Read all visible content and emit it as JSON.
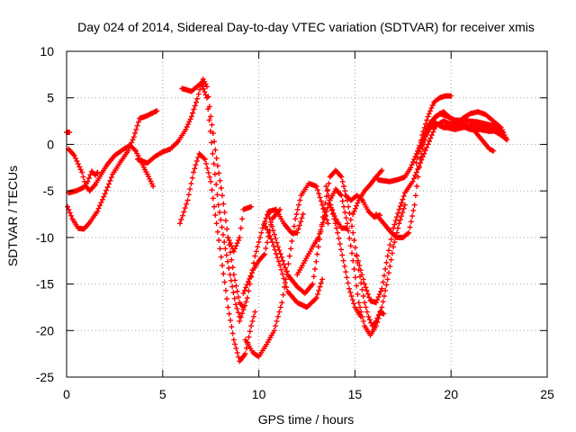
{
  "chart_data": {
    "type": "scatter",
    "title": "Day 024 of 2014, Sidereal Day-to-day VTEC variation (SDTVAR) for receiver xmis",
    "xlabel": "GPS time / hours",
    "ylabel": "SDTVAR / TECUs",
    "xlim": [
      0,
      25
    ],
    "ylim": [
      -25,
      10
    ],
    "xticks": [
      0,
      5,
      10,
      15,
      20,
      25
    ],
    "yticks": [
      -25,
      -20,
      -15,
      -10,
      -5,
      0,
      5,
      10
    ],
    "grid": true,
    "legend": "none",
    "marker": "plus",
    "color": "#ff0000",
    "series": [
      {
        "points": [
          [
            0,
            1.3
          ],
          [
            0.15,
            1.3
          ]
        ]
      },
      {
        "points": [
          [
            0.1,
            -0.5
          ],
          [
            0.4,
            -1.2
          ],
          [
            0.8,
            -3.0
          ],
          [
            1.0,
            -4.5
          ],
          [
            1.2,
            -5.0
          ],
          [
            1.5,
            -4.3
          ],
          [
            1.8,
            -3.2
          ],
          [
            2.1,
            -2.2
          ],
          [
            2.5,
            -1.2
          ],
          [
            2.9,
            -0.6
          ],
          [
            3.3,
            -0.1
          ],
          [
            3.6,
            -0.7
          ],
          [
            3.9,
            -2.0
          ],
          [
            4.2,
            -3.2
          ],
          [
            4.5,
            -4.5
          ]
        ]
      },
      {
        "points": [
          [
            0.1,
            -5.2
          ],
          [
            0.5,
            -5.0
          ],
          [
            0.9,
            -4.6
          ],
          [
            1.1,
            -4.0
          ],
          [
            1.3,
            -2.9
          ],
          [
            1.5,
            -3.3
          ],
          [
            1.6,
            -3.0
          ]
        ]
      },
      {
        "points": [
          [
            0.05,
            -6.7
          ],
          [
            0.3,
            -8.0
          ],
          [
            0.6,
            -9.0
          ],
          [
            0.9,
            -9.1
          ],
          [
            1.2,
            -8.4
          ],
          [
            1.6,
            -7.2
          ],
          [
            2.0,
            -5.3
          ],
          [
            2.4,
            -3.2
          ],
          [
            2.8,
            -1.9
          ],
          [
            3.2,
            -0.7
          ],
          [
            3.5,
            0.8
          ],
          [
            3.8,
            2.8
          ],
          [
            4.1,
            3.0
          ],
          [
            4.4,
            3.3
          ],
          [
            4.7,
            3.6
          ]
        ]
      },
      {
        "points": [
          [
            3.7,
            -1.6
          ],
          [
            4.2,
            -2.0
          ],
          [
            4.6,
            -1.3
          ],
          [
            5.0,
            -0.8
          ],
          [
            5.4,
            -0.5
          ],
          [
            5.8,
            0.3
          ],
          [
            6.2,
            1.6
          ],
          [
            6.5,
            3.0
          ],
          [
            6.8,
            4.9
          ],
          [
            7.0,
            6.4
          ],
          [
            7.1,
            7.0
          ],
          [
            7.3,
            6.2
          ],
          [
            7.5,
            3.0
          ],
          [
            7.8,
            -1.5
          ],
          [
            8.1,
            -5.5
          ],
          [
            8.4,
            -10.0
          ],
          [
            8.7,
            -14.0
          ],
          [
            9.0,
            -17.0
          ],
          [
            9.2,
            -17.5
          ]
        ]
      },
      {
        "points": [
          [
            6.0,
            6.0
          ],
          [
            6.5,
            5.7
          ],
          [
            7.0,
            6.6
          ],
          [
            7.3,
            5.0
          ],
          [
            7.6,
            -1.0
          ],
          [
            7.9,
            -6.5
          ],
          [
            8.2,
            -10.5
          ],
          [
            8.5,
            -14.0
          ],
          [
            8.8,
            -17.2
          ],
          [
            9.0,
            -18.5
          ]
        ]
      },
      {
        "points": [
          [
            5.9,
            -8.5
          ],
          [
            6.3,
            -6.0
          ],
          [
            6.6,
            -3.0
          ],
          [
            6.9,
            -1.0
          ],
          [
            7.2,
            -1.6
          ],
          [
            7.5,
            -4.0
          ],
          [
            7.8,
            -8.5
          ],
          [
            8.1,
            -13.0
          ],
          [
            8.4,
            -17.5
          ],
          [
            8.7,
            -21.0
          ],
          [
            9.0,
            -23.3
          ],
          [
            9.3,
            -22.5
          ],
          [
            9.6,
            -19.5
          ],
          [
            9.8,
            -18.0
          ]
        ]
      },
      {
        "points": [
          [
            8.4,
            -10.0
          ],
          [
            8.7,
            -11.5
          ],
          [
            9.0,
            -10.0
          ],
          [
            9.2,
            -7.0
          ],
          [
            9.6,
            -6.7
          ]
        ]
      },
      {
        "points": [
          [
            9.2,
            -16.0
          ],
          [
            9.7,
            -13.5
          ],
          [
            10.0,
            -12.5
          ],
          [
            10.3,
            -11.8
          ],
          [
            10.7,
            -8.0
          ],
          [
            11.1,
            -7.0
          ]
        ]
      },
      {
        "points": [
          [
            9.3,
            -21.0
          ],
          [
            9.7,
            -22.4
          ],
          [
            10.0,
            -22.8
          ],
          [
            10.4,
            -21.5
          ],
          [
            10.8,
            -20.0
          ],
          [
            11.2,
            -17.0
          ],
          [
            11.6,
            -12.0
          ],
          [
            11.9,
            -8.0
          ],
          [
            12.2,
            -5.5
          ],
          [
            12.6,
            -4.2
          ],
          [
            13.0,
            -4.5
          ],
          [
            13.3,
            -6.5
          ],
          [
            13.6,
            -8.5
          ]
        ]
      },
      {
        "points": [
          [
            9.0,
            -19.0
          ],
          [
            9.4,
            -16.5
          ],
          [
            9.8,
            -12.0
          ],
          [
            10.2,
            -9.0
          ],
          [
            10.5,
            -7.2
          ],
          [
            10.9,
            -7.0
          ],
          [
            11.3,
            -8.5
          ],
          [
            11.7,
            -9.5
          ],
          [
            12.0,
            -9.5
          ],
          [
            12.3,
            -7.5
          ]
        ]
      },
      {
        "points": [
          [
            10.3,
            -8.5
          ],
          [
            10.7,
            -10.5
          ],
          [
            11.1,
            -13.0
          ],
          [
            11.5,
            -15.8
          ],
          [
            12.0,
            -17.0
          ],
          [
            12.5,
            -17.5
          ],
          [
            13.0,
            -16.5
          ],
          [
            13.3,
            -14.5
          ]
        ]
      },
      {
        "points": [
          [
            10.5,
            -7.5
          ],
          [
            11.0,
            -11.0
          ],
          [
            11.5,
            -14.0
          ],
          [
            12.0,
            -15.3
          ],
          [
            12.4,
            -16.0
          ],
          [
            12.8,
            -15.0
          ],
          [
            13.1,
            -11.0
          ],
          [
            13.4,
            -7.0
          ],
          [
            13.7,
            -3.5
          ],
          [
            14.0,
            -2.8
          ],
          [
            14.3,
            -3.5
          ],
          [
            14.6,
            -6.0
          ],
          [
            14.9,
            -9.5
          ],
          [
            15.2,
            -13.5
          ],
          [
            15.5,
            -17.0
          ],
          [
            15.7,
            -18.5
          ],
          [
            15.9,
            -19.5
          ],
          [
            16.1,
            -19.0
          ],
          [
            16.3,
            -18.0
          ],
          [
            16.5,
            -18.2
          ]
        ]
      },
      {
        "points": [
          [
            12.0,
            -14.0
          ],
          [
            12.4,
            -12.5
          ],
          [
            12.8,
            -11.0
          ],
          [
            13.1,
            -10.0
          ],
          [
            13.4,
            -8.0
          ],
          [
            13.7,
            -6.0
          ],
          [
            14.0,
            -4.8
          ],
          [
            14.3,
            -5.5
          ],
          [
            14.6,
            -8.5
          ],
          [
            14.9,
            -12.5
          ],
          [
            15.2,
            -17.0
          ],
          [
            15.5,
            -19.5
          ],
          [
            15.8,
            -20.5
          ],
          [
            16.1,
            -19.5
          ],
          [
            16.4,
            -17.5
          ],
          [
            16.7,
            -14.5
          ],
          [
            17.0,
            -11.0
          ],
          [
            17.3,
            -8.5
          ],
          [
            17.6,
            -6.5
          ]
        ]
      },
      {
        "points": [
          [
            13.5,
            -4.5
          ],
          [
            13.8,
            -7.0
          ],
          [
            14.1,
            -9.5
          ],
          [
            14.4,
            -12.5
          ],
          [
            14.7,
            -15.5
          ],
          [
            15.0,
            -17.5
          ],
          [
            15.3,
            -18.5
          ]
        ]
      },
      {
        "points": [
          [
            13.7,
            -6.5
          ],
          [
            14.0,
            -8.0
          ],
          [
            14.3,
            -9.0
          ],
          [
            14.6,
            -9.0
          ]
        ]
      },
      {
        "points": [
          [
            14.5,
            -5.5
          ],
          [
            14.8,
            -6.0
          ],
          [
            15.1,
            -5.5
          ],
          [
            15.4,
            -6.0
          ],
          [
            15.7,
            -7.2
          ],
          [
            16.0,
            -7.8
          ],
          [
            16.3,
            -7.6
          ]
        ]
      },
      {
        "points": [
          [
            14.9,
            -7.5
          ],
          [
            15.2,
            -6.0
          ],
          [
            15.5,
            -5.0
          ],
          [
            15.8,
            -4.3
          ],
          [
            16.1,
            -3.5
          ],
          [
            16.4,
            -2.8
          ]
        ]
      },
      {
        "points": [
          [
            15.1,
            -12.0
          ],
          [
            15.5,
            -15.0
          ],
          [
            15.8,
            -16.8
          ],
          [
            16.1,
            -17.0
          ],
          [
            16.4,
            -15.5
          ],
          [
            16.7,
            -12.0
          ],
          [
            17.0,
            -9.0
          ],
          [
            17.3,
            -7.0
          ],
          [
            17.6,
            -5.2
          ],
          [
            18.0,
            -4.0
          ],
          [
            18.4,
            -2.0
          ],
          [
            18.8,
            0.0
          ],
          [
            19.2,
            2.0
          ],
          [
            19.6,
            2.5
          ],
          [
            20.0,
            2.2
          ],
          [
            20.5,
            2.0
          ],
          [
            21.0,
            1.6
          ],
          [
            21.5,
            1.6
          ],
          [
            22.0,
            1.4
          ],
          [
            22.5,
            1.5
          ],
          [
            22.7,
            1.3
          ]
        ]
      },
      {
        "points": [
          [
            16.1,
            -7.5
          ],
          [
            16.5,
            -8.5
          ],
          [
            16.9,
            -9.5
          ],
          [
            17.2,
            -10.0
          ],
          [
            17.5,
            -10.0
          ],
          [
            17.8,
            -9.5
          ],
          [
            18.1,
            -6.5
          ],
          [
            18.4,
            -1.5
          ],
          [
            18.7,
            1.0
          ],
          [
            19.0,
            2.5
          ],
          [
            19.4,
            3.3
          ],
          [
            19.8,
            3.0
          ],
          [
            20.2,
            2.6
          ],
          [
            20.6,
            2.6
          ],
          [
            21.0,
            2.5
          ],
          [
            21.4,
            2.4
          ],
          [
            21.8,
            2.2
          ],
          [
            22.2,
            2.0
          ],
          [
            22.6,
            1.3
          ]
        ]
      },
      {
        "points": [
          [
            16.2,
            -3.8
          ],
          [
            16.8,
            -4.0
          ],
          [
            17.2,
            -3.8
          ],
          [
            17.6,
            -3.5
          ],
          [
            17.9,
            -2.5
          ],
          [
            18.2,
            -1.0
          ],
          [
            18.5,
            0.5
          ],
          [
            18.8,
            2.0
          ],
          [
            19.2,
            3.0
          ],
          [
            19.6,
            3.5
          ],
          [
            20.0,
            2.8
          ],
          [
            20.4,
            2.3
          ],
          [
            20.8,
            2.0
          ],
          [
            21.2,
            1.5
          ],
          [
            21.6,
            0.5
          ],
          [
            22.0,
            -0.5
          ],
          [
            22.2,
            -0.7
          ]
        ]
      },
      {
        "points": [
          [
            18.2,
            -2.0
          ],
          [
            18.5,
            1.0
          ],
          [
            18.8,
            3.0
          ],
          [
            19.1,
            4.5
          ],
          [
            19.4,
            5.0
          ],
          [
            19.7,
            5.2
          ],
          [
            20.0,
            5.2
          ]
        ]
      },
      {
        "points": [
          [
            18.4,
            -0.5
          ],
          [
            18.8,
            1.5
          ],
          [
            19.2,
            2.3
          ],
          [
            19.6,
            1.8
          ],
          [
            20.0,
            1.8
          ],
          [
            20.3,
            2.0
          ],
          [
            20.6,
            2.8
          ],
          [
            21.0,
            3.3
          ],
          [
            21.4,
            3.5
          ],
          [
            21.8,
            3.2
          ],
          [
            22.2,
            2.5
          ],
          [
            22.6,
            1.8
          ],
          [
            22.9,
            0.5
          ]
        ]
      },
      {
        "points": [
          [
            19.4,
            2.0
          ],
          [
            19.8,
            1.8
          ],
          [
            20.2,
            1.6
          ],
          [
            20.6,
            1.8
          ],
          [
            21.0,
            2.0
          ],
          [
            21.4,
            2.2
          ],
          [
            21.8,
            2.0
          ],
          [
            22.2,
            1.5
          ],
          [
            22.6,
            1.0
          ],
          [
            22.9,
            0.5
          ]
        ]
      }
    ]
  }
}
